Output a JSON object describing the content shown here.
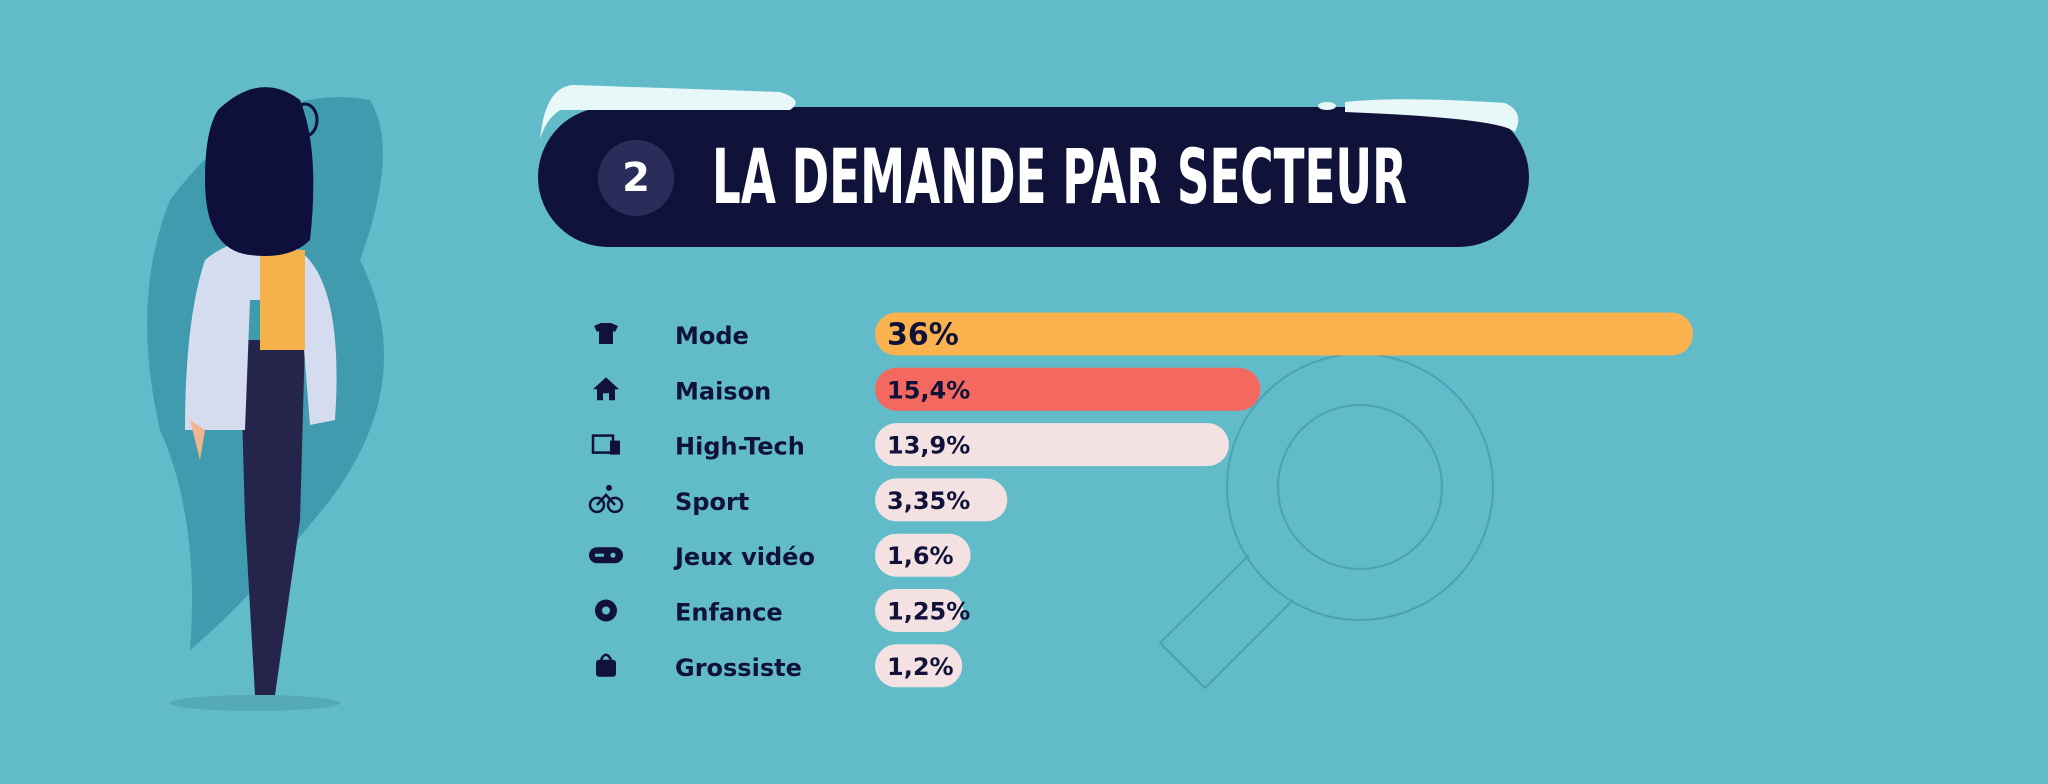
{
  "chart_data": {
    "type": "bar",
    "orientation": "horizontal",
    "badge": "2",
    "title": "LA DEMANDE PAR SECTEUR",
    "categories": [
      "Mode",
      "Maison",
      "High-Tech",
      "Sport",
      "Jeux vidéo",
      "Enfance",
      "Grossiste"
    ],
    "values": [
      36,
      15.4,
      13.9,
      3.35,
      1.6,
      1.25,
      1.2
    ],
    "value_labels": [
      "36%",
      "15,4%",
      "13,9%",
      "3,35%",
      "1,6%",
      "1,25%",
      "1,2%"
    ],
    "colors": [
      "#f9b24e",
      "#f4695f",
      "#f3e2e1",
      "#f3e2e1",
      "#f3e2e1",
      "#f3e2e1",
      "#f3e2e1"
    ]
  }
}
